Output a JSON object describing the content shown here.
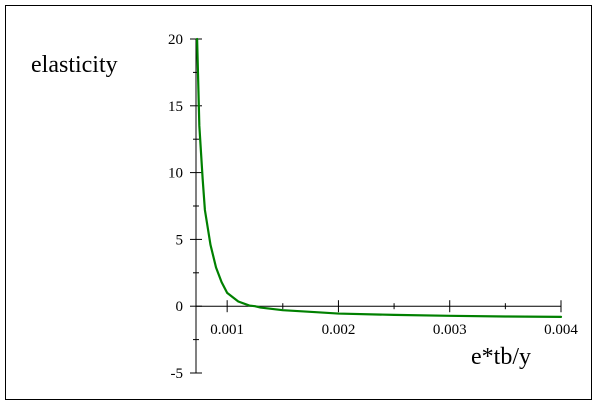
{
  "chart_data": {
    "type": "line",
    "title": "",
    "xlabel": "e*tb/y",
    "ylabel": "elasticity",
    "xlim": [
      0.00072,
      0.004
    ],
    "ylim": [
      -5,
      20
    ],
    "x_ticks": [
      "0.001",
      "0.002",
      "0.003",
      "0.004"
    ],
    "x_tick_values": [
      0.001,
      0.002,
      0.003,
      0.004
    ],
    "y_ticks": [
      "-5",
      "0",
      "5",
      "10",
      "15",
      "20"
    ],
    "y_tick_values": [
      -5,
      0,
      5,
      10,
      15,
      20
    ],
    "grid": false,
    "series": [
      {
        "color": "#008000",
        "x": [
          0.00073,
          0.00075,
          0.00078,
          0.0008,
          0.00085,
          0.0009,
          0.00095,
          0.001,
          0.0011,
          0.0012,
          0.00125,
          0.0013,
          0.0015,
          0.0018,
          0.002,
          0.0025,
          0.003,
          0.0035,
          0.004
        ],
        "y": [
          20,
          13.5,
          9.5,
          7.2,
          4.6,
          2.9,
          1.8,
          1.0,
          0.35,
          0.05,
          0.0,
          -0.1,
          -0.3,
          -0.45,
          -0.55,
          -0.65,
          -0.72,
          -0.77,
          -0.8
        ]
      }
    ]
  }
}
